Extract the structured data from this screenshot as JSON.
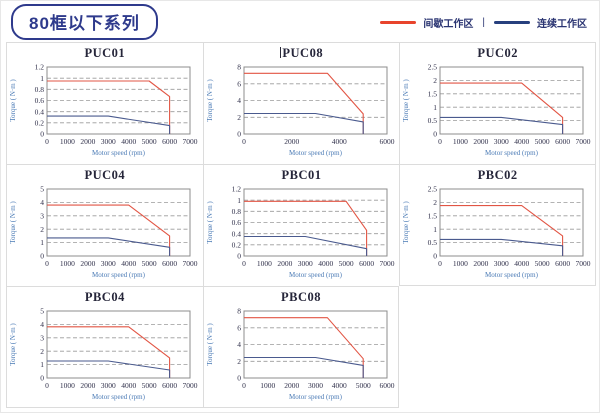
{
  "page": {
    "title_badge": "80框以下系列",
    "legend": [
      {
        "name": "intermittent",
        "label": "间歇工作区",
        "color": "#e8442c"
      },
      {
        "name": "continuous",
        "label": "连续工作区",
        "color": "#27407e"
      }
    ],
    "legend_separator": "|"
  },
  "chart_defaults": {
    "series_colors": {
      "intermittent": "#e25544",
      "continuous": "#4a5a8e"
    },
    "grid": "horizontal-dashed",
    "legend_position": "top-right-of-page"
  },
  "chart_data": [
    {
      "type": "line",
      "title": "PUC01",
      "caret": false,
      "xlabel": "Motor speed (rpm)",
      "ylabel": "Torque ( N·m )",
      "xlim": [
        0,
        7000
      ],
      "xtick_step": 1000,
      "ylim": [
        0,
        1.2
      ],
      "ytick_step": 0.2,
      "series": [
        {
          "name": "间歇工作区",
          "color_key": "intermittent",
          "points": [
            [
              0,
              0.95
            ],
            [
              5000,
              0.95
            ],
            [
              6000,
              0.67
            ],
            [
              6000,
              0
            ]
          ]
        },
        {
          "name": "连续工作区",
          "color_key": "continuous",
          "points": [
            [
              0,
              0.32
            ],
            [
              3000,
              0.32
            ],
            [
              6000,
              0.15
            ],
            [
              6000,
              0
            ]
          ]
        }
      ]
    },
    {
      "type": "line",
      "title": "PUC08",
      "caret": true,
      "xlabel": "Motor speed (rpm)",
      "ylabel": "Torque ( N·m )",
      "xlim": [
        0,
        6000
      ],
      "xtick_step": 2000,
      "ylim": [
        0,
        8
      ],
      "ytick_step": 2,
      "series": [
        {
          "name": "间歇工作区",
          "color_key": "intermittent",
          "points": [
            [
              0,
              7.25
            ],
            [
              3500,
              7.25
            ],
            [
              5000,
              2.4
            ],
            [
              5000,
              0
            ]
          ]
        },
        {
          "name": "连续工作区",
          "color_key": "continuous",
          "points": [
            [
              0,
              2.45
            ],
            [
              3000,
              2.45
            ],
            [
              5000,
              1.45
            ],
            [
              5000,
              0
            ]
          ]
        }
      ]
    },
    {
      "type": "line",
      "title": "PUC02",
      "caret": false,
      "xlabel": "Motor speed (rpm)",
      "ylabel": "Torque ( N·m )",
      "xlim": [
        0,
        7000
      ],
      "xtick_step": 1000,
      "ylim": [
        0,
        2.5
      ],
      "ytick_step": 0.5,
      "series": [
        {
          "name": "间歇工作区",
          "color_key": "intermittent",
          "points": [
            [
              0,
              1.9
            ],
            [
              4000,
              1.9
            ],
            [
              6000,
              0.62
            ],
            [
              6000,
              0
            ]
          ]
        },
        {
          "name": "连续工作区",
          "color_key": "continuous",
          "points": [
            [
              0,
              0.62
            ],
            [
              3000,
              0.62
            ],
            [
              6000,
              0.35
            ],
            [
              6000,
              0
            ]
          ]
        }
      ]
    },
    {
      "type": "line",
      "title": "PUC04",
      "caret": false,
      "xlabel": "Motor speed (rpm)",
      "ylabel": "Torque ( N·m )",
      "xlim": [
        0,
        7000
      ],
      "xtick_step": 1000,
      "ylim": [
        0,
        5
      ],
      "ytick_step": 1,
      "series": [
        {
          "name": "间歇工作区",
          "color_key": "intermittent",
          "points": [
            [
              0,
              3.8
            ],
            [
              4000,
              3.8
            ],
            [
              6000,
              1.5
            ],
            [
              6000,
              0
            ]
          ]
        },
        {
          "name": "连续工作区",
          "color_key": "continuous",
          "points": [
            [
              0,
              1.35
            ],
            [
              3000,
              1.35
            ],
            [
              6000,
              0.65
            ],
            [
              6000,
              0
            ]
          ]
        }
      ]
    },
    {
      "type": "line",
      "title": "PBC01",
      "caret": false,
      "xlabel": "Motor speed (rpm)",
      "ylabel": "Torque ( N·m )",
      "xlim": [
        0,
        7000
      ],
      "xtick_step": 1000,
      "ylim": [
        0,
        1.2
      ],
      "ytick_step": 0.2,
      "series": [
        {
          "name": "间歇工作区",
          "color_key": "intermittent",
          "points": [
            [
              0,
              0.98
            ],
            [
              5000,
              0.98
            ],
            [
              6000,
              0.46
            ],
            [
              6000,
              0
            ]
          ]
        },
        {
          "name": "连续工作区",
          "color_key": "continuous",
          "points": [
            [
              0,
              0.35
            ],
            [
              3000,
              0.35
            ],
            [
              6000,
              0.13
            ],
            [
              6000,
              0
            ]
          ]
        }
      ]
    },
    {
      "type": "line",
      "title": "PBC02",
      "caret": false,
      "xlabel": "Motor speed (rpm)",
      "ylabel": "Torque ( N·m )",
      "xlim": [
        0,
        7000
      ],
      "xtick_step": 1000,
      "ylim": [
        0,
        2.5
      ],
      "ytick_step": 0.5,
      "series": [
        {
          "name": "间歇工作区",
          "color_key": "intermittent",
          "points": [
            [
              0,
              1.88
            ],
            [
              4000,
              1.88
            ],
            [
              6000,
              0.75
            ],
            [
              6000,
              0
            ]
          ]
        },
        {
          "name": "连续工作区",
          "color_key": "continuous",
          "points": [
            [
              0,
              0.62
            ],
            [
              3000,
              0.62
            ],
            [
              6000,
              0.38
            ],
            [
              6000,
              0
            ]
          ]
        }
      ]
    },
    {
      "type": "line",
      "title": "PBC04",
      "caret": false,
      "xlabel": "Motor speed (rpm)",
      "ylabel": "Torque ( N·m )",
      "xlim": [
        0,
        7000
      ],
      "xtick_step": 1000,
      "ylim": [
        0,
        5
      ],
      "ytick_step": 1,
      "series": [
        {
          "name": "间歇工作区",
          "color_key": "intermittent",
          "points": [
            [
              0,
              3.82
            ],
            [
              4000,
              3.82
            ],
            [
              6000,
              1.5
            ],
            [
              6000,
              0
            ]
          ]
        },
        {
          "name": "连续工作区",
          "color_key": "continuous",
          "points": [
            [
              0,
              1.27
            ],
            [
              3000,
              1.27
            ],
            [
              6000,
              0.6
            ],
            [
              6000,
              0
            ]
          ]
        }
      ]
    },
    {
      "type": "line",
      "title": "PBC08",
      "caret": false,
      "xlabel": "Motor speed (rpm)",
      "ylabel": "Torque ( N·m )",
      "xlim": [
        0,
        6000
      ],
      "xtick_step": 1000,
      "ylim": [
        0,
        8
      ],
      "ytick_step": 2,
      "series": [
        {
          "name": "间歇工作区",
          "color_key": "intermittent",
          "points": [
            [
              0,
              7.2
            ],
            [
              3500,
              7.2
            ],
            [
              5000,
              2.3
            ],
            [
              5000,
              0
            ]
          ]
        },
        {
          "name": "连续工作区",
          "color_key": "continuous",
          "points": [
            [
              0,
              2.45
            ],
            [
              3000,
              2.45
            ],
            [
              5000,
              1.5
            ],
            [
              5000,
              0
            ]
          ]
        }
      ]
    }
  ]
}
